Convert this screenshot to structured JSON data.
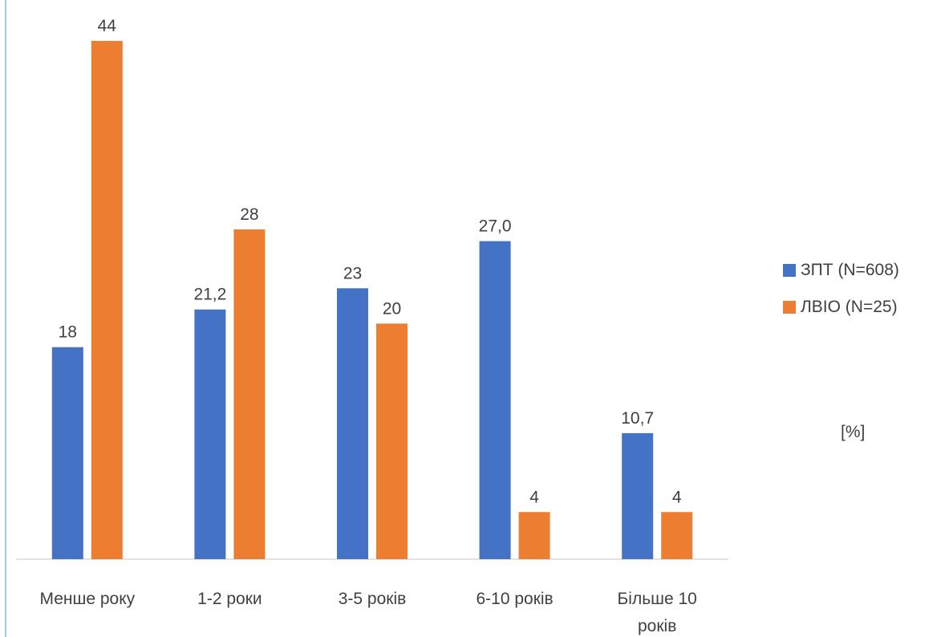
{
  "chart_data": {
    "type": "bar",
    "categories": [
      "Менше року",
      "1-2 роки",
      "3-5 років",
      "6-10 років",
      "Більше 10 років"
    ],
    "series": [
      {
        "name": "ЗПТ (N=608)",
        "color": "#4472c4",
        "values": [
          18,
          21.2,
          23,
          27.0,
          10.7
        ],
        "labels": [
          "18",
          "21,2",
          "23",
          "27,0",
          "10,7"
        ]
      },
      {
        "name": "ЛВІО (N=25)",
        "color": "#ed7d31",
        "values": [
          44,
          28,
          20,
          4,
          4
        ],
        "labels": [
          "44",
          "28",
          "20",
          "4",
          "4"
        ]
      }
    ],
    "ylim": [
      0,
      44
    ],
    "grid": false,
    "legend_position": "right",
    "note": "[%]"
  }
}
